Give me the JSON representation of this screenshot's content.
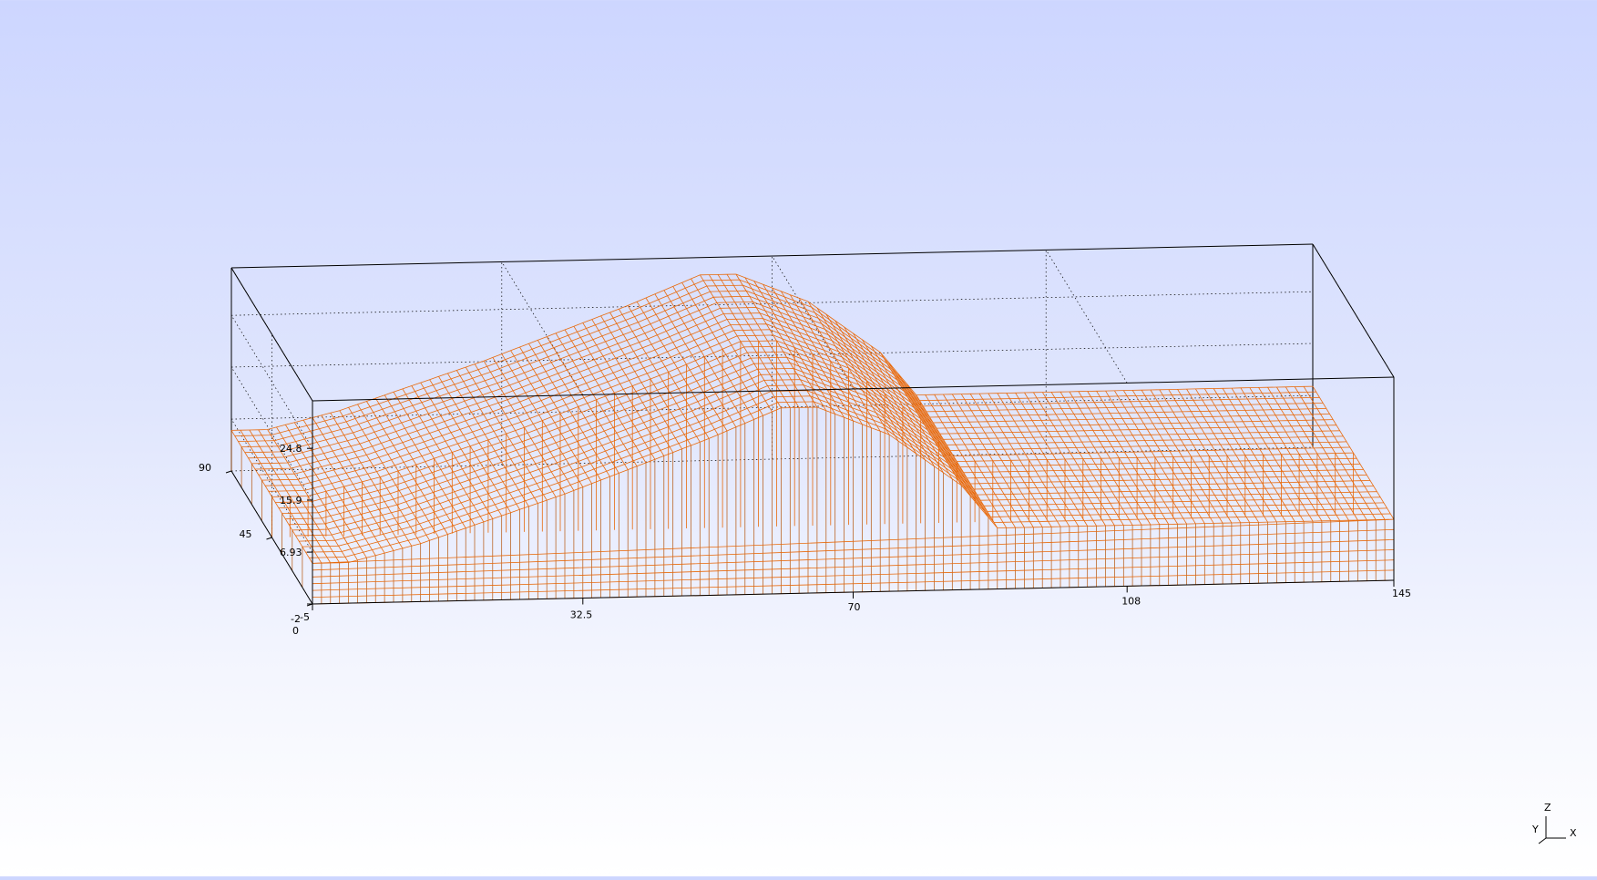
{
  "chart_data": {
    "type": "surface",
    "title": "",
    "x_axis": {
      "label": "",
      "ticks": [
        "-5",
        "32.5",
        "70",
        "108",
        "145"
      ],
      "range": [
        -5,
        145
      ]
    },
    "y_axis": {
      "label": "",
      "ticks": [
        "0",
        "45",
        "90"
      ],
      "range": [
        0,
        90
      ]
    },
    "z_axis": {
      "label": "",
      "ticks": [
        "-2",
        "6.93",
        "15.9",
        "24.8"
      ],
      "range": [
        -2,
        33
      ]
    },
    "grid": true,
    "surface_color": "#e8690b",
    "surface_profile": {
      "x": [
        -5,
        0,
        10,
        20,
        30,
        40,
        50,
        60,
        65,
        75,
        85,
        90,
        100,
        120,
        145
      ],
      "z": [
        5,
        5,
        8,
        12,
        16,
        20.5,
        25,
        30,
        30,
        25,
        16,
        8.5,
        8.5,
        8.5,
        8.5
      ]
    }
  },
  "orientation_axes": {
    "x_label": "X",
    "y_label": "Y",
    "z_label": "Z"
  }
}
